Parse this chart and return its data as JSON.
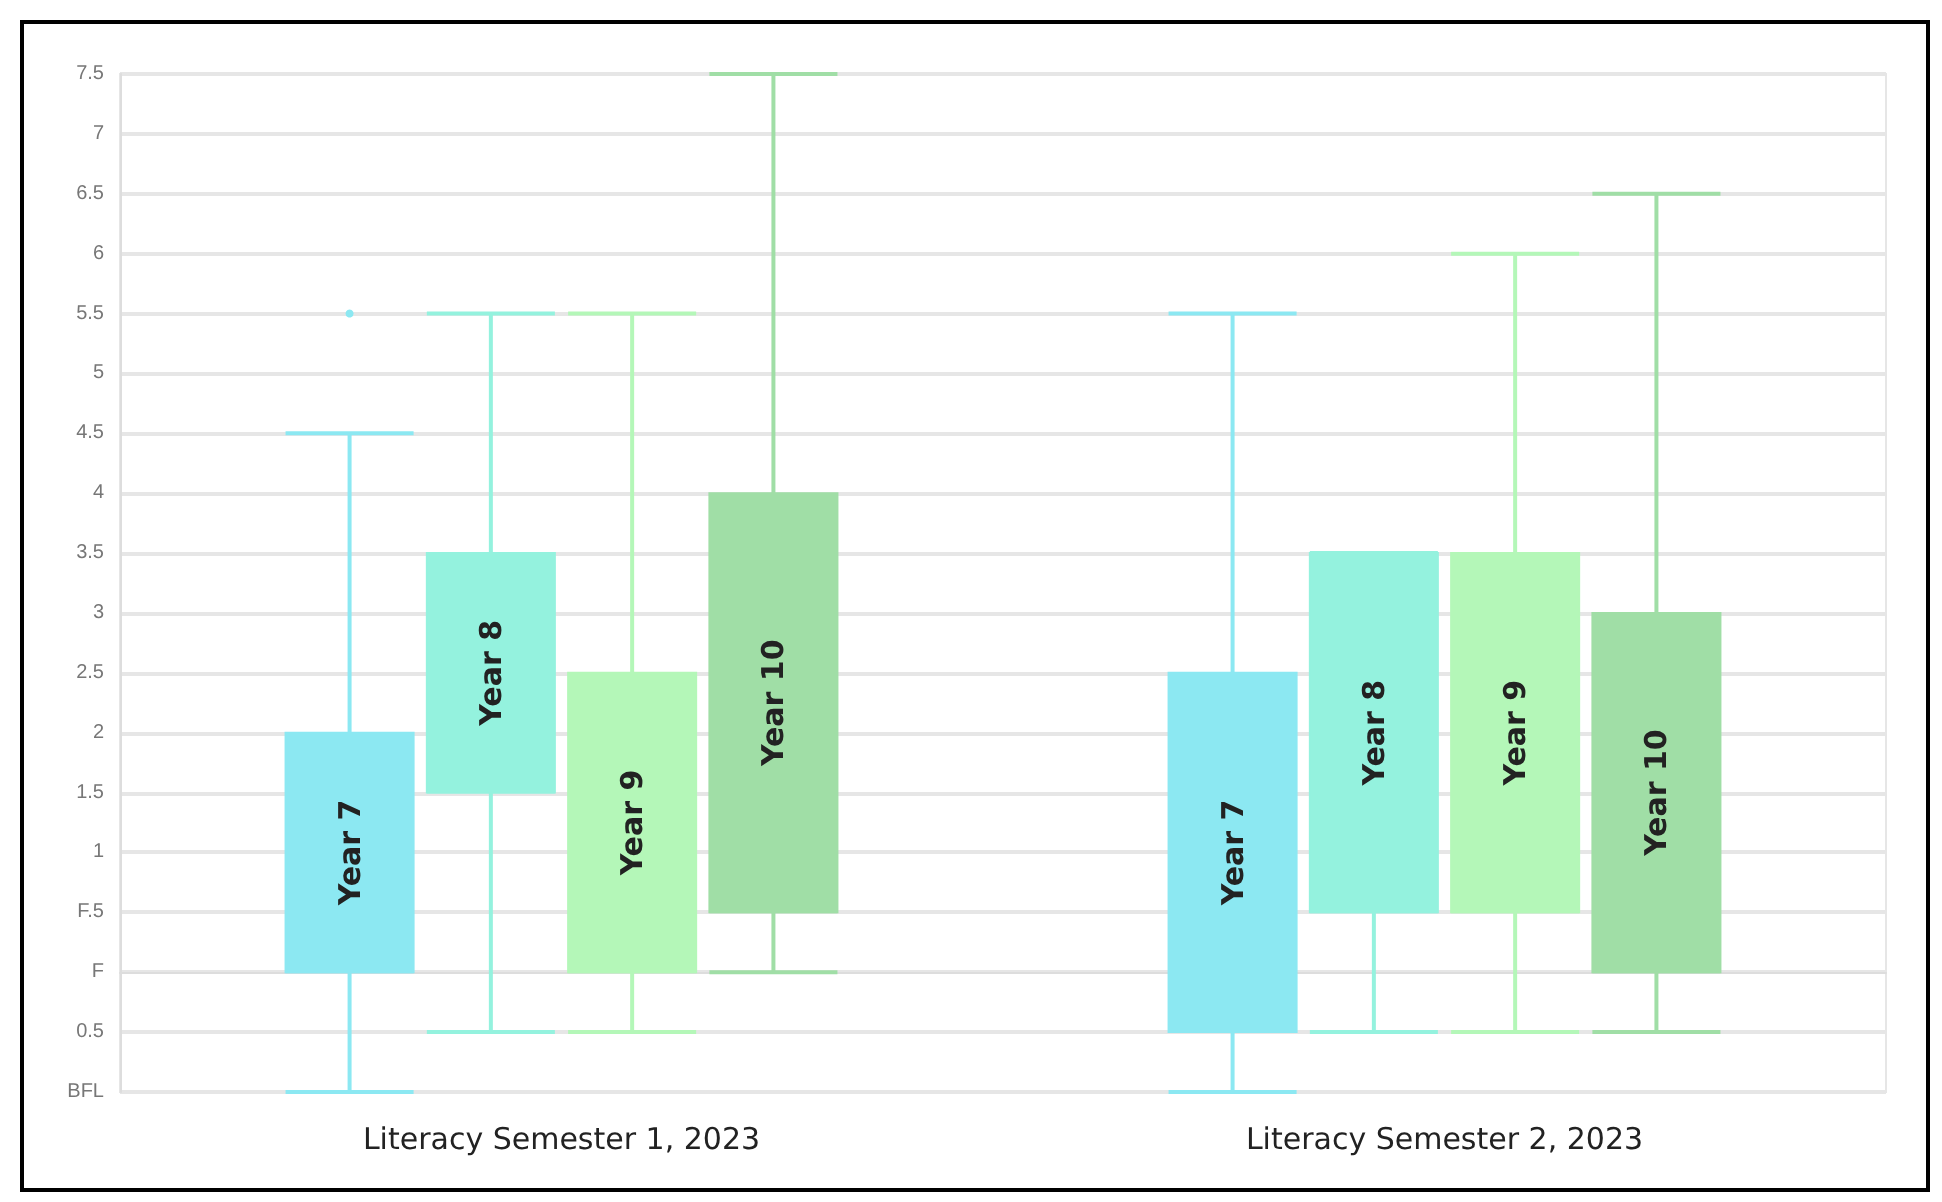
{
  "chart_data": {
    "type": "box",
    "categories": [
      "Literacy Semester 1, 2023",
      "Literacy Semester 2, 2023"
    ],
    "ylim": [
      -1,
      7.5
    ],
    "yticks": [
      {
        "value": -1,
        "label": "BFL"
      },
      {
        "value": -0.5,
        "label": "0.5"
      },
      {
        "value": 0,
        "label": "F"
      },
      {
        "value": 0.5,
        "label": "F.5"
      },
      1,
      1.5,
      2,
      2.5,
      3,
      3.5,
      4,
      4.5,
      5,
      5.5,
      6,
      6.5,
      7,
      7.5
    ],
    "grid": "y",
    "legend": false,
    "series": [
      {
        "name": "Year 7",
        "color": "#8ce8f2",
        "boxes": [
          {
            "low": -1,
            "q1": 0,
            "median": 0,
            "q3": 2,
            "high": 4.5,
            "outliers": [
              5.5
            ]
          },
          {
            "low": -1,
            "q1": -0.5,
            "median": -0.5,
            "q3": 2.5,
            "high": 5.5
          }
        ]
      },
      {
        "name": "Year 8",
        "color": "#94f2de",
        "boxes": [
          {
            "low": -0.5,
            "q1": 1.5,
            "median": 1.5,
            "q3": 3.5,
            "high": 5.5
          },
          {
            "low": -0.5,
            "q1": 0.5,
            "median": 0.5,
            "q3": 3.5,
            "high": 3.5
          }
        ]
      },
      {
        "name": "Year 9",
        "color": "#b4f7b8",
        "boxes": [
          {
            "low": -0.5,
            "q1": 0,
            "median": 0,
            "q3": 2.5,
            "high": 5.5
          },
          {
            "low": -0.5,
            "q1": 0.5,
            "median": 0.5,
            "q3": 3.5,
            "high": 6
          }
        ]
      },
      {
        "name": "Year 10",
        "color": "#a0dea6",
        "boxes": [
          {
            "low": 0,
            "q1": 0.5,
            "median": 0.5,
            "q3": 4,
            "high": 7.5
          },
          {
            "low": -0.5,
            "q1": 0,
            "median": 0,
            "q3": 3,
            "high": 6.5
          }
        ]
      }
    ]
  }
}
